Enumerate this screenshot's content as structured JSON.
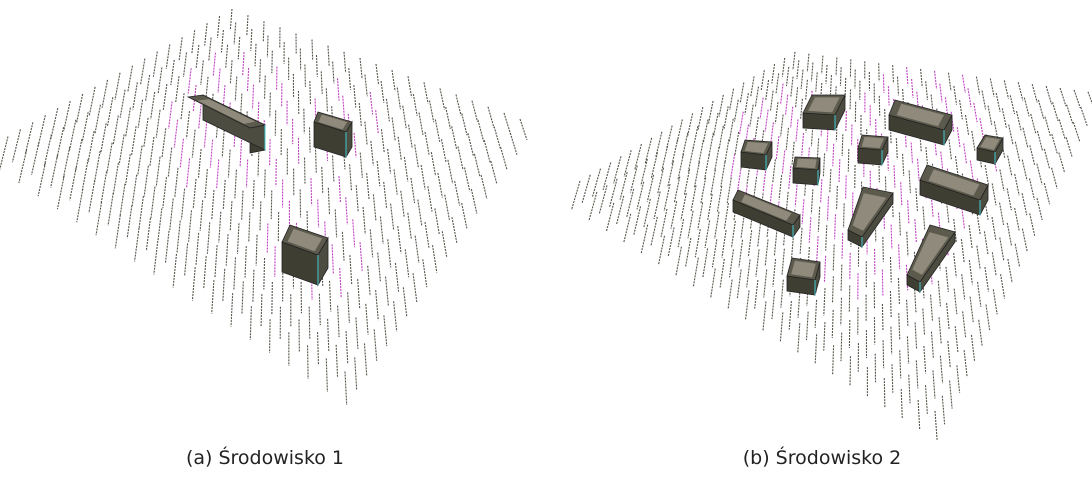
{
  "figures": [
    {
      "caption": "(a) Środowisko 1"
    },
    {
      "caption": "(b) Środowisko 2"
    }
  ]
}
